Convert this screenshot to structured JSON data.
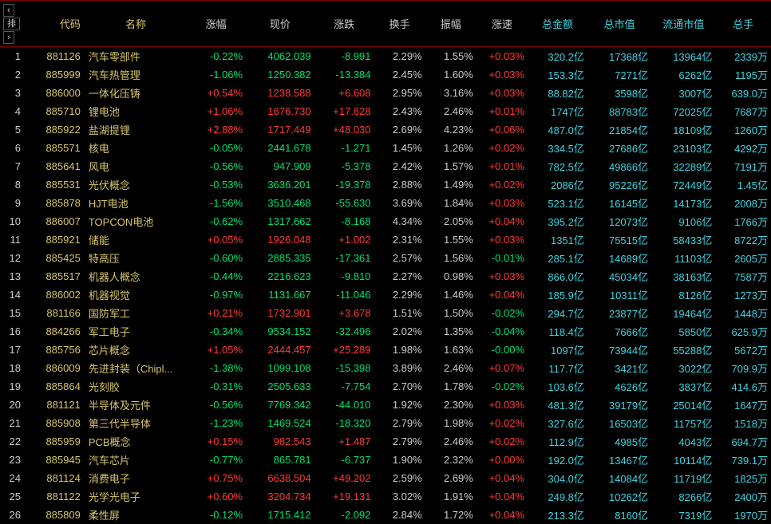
{
  "header_btn1": "‹",
  "header_btn2": "排",
  "header_btn3": "›",
  "cols": [
    "代码",
    "名称",
    "涨幅",
    "现价",
    "涨跌",
    "换手",
    "振幅",
    "涨速",
    "总金额",
    "总市值",
    "流通市值",
    "总手"
  ],
  "rows": [
    {
      "i": "1",
      "code": "881126",
      "name": "汽车零部件",
      "pct": "-0.22%",
      "price": "4062.039",
      "chg": "-8.991",
      "turn": "2.29%",
      "amp": "1.55%",
      "spd": "+0.03%",
      "amt": "320.2亿",
      "mcap": "17368亿",
      "fcap": "13964亿",
      "vol": "2339万"
    },
    {
      "i": "2",
      "code": "885999",
      "name": "汽车热管理",
      "pct": "-1.06%",
      "price": "1250.382",
      "chg": "-13.384",
      "turn": "2.45%",
      "amp": "1.60%",
      "spd": "+0.03%",
      "amt": "153.3亿",
      "mcap": "7271亿",
      "fcap": "6262亿",
      "vol": "1195万"
    },
    {
      "i": "3",
      "code": "886000",
      "name": "一体化压铸",
      "pct": "+0.54%",
      "price": "1238.588",
      "chg": "+6.608",
      "turn": "2.95%",
      "amp": "3.16%",
      "spd": "+0.03%",
      "amt": "88.82亿",
      "mcap": "3598亿",
      "fcap": "3007亿",
      "vol": "639.0万"
    },
    {
      "i": "4",
      "code": "885710",
      "name": "锂电池",
      "pct": "+1.06%",
      "price": "1676.730",
      "chg": "+17.628",
      "turn": "2.43%",
      "amp": "2.46%",
      "spd": "+0.01%",
      "amt": "1747亿",
      "mcap": "88783亿",
      "fcap": "72025亿",
      "vol": "7687万"
    },
    {
      "i": "5",
      "code": "885922",
      "name": "盐湖提锂",
      "pct": "+2.88%",
      "price": "1717.449",
      "chg": "+48.030",
      "turn": "2.69%",
      "amp": "4.23%",
      "spd": "+0.06%",
      "amt": "487.0亿",
      "mcap": "21854亿",
      "fcap": "18109亿",
      "vol": "1260万"
    },
    {
      "i": "6",
      "code": "885571",
      "name": "核电",
      "pct": "-0.05%",
      "price": "2441.678",
      "chg": "-1.271",
      "turn": "1.45%",
      "amp": "1.26%",
      "spd": "+0.02%",
      "amt": "334.5亿",
      "mcap": "27686亿",
      "fcap": "23103亿",
      "vol": "4292万"
    },
    {
      "i": "7",
      "code": "885641",
      "name": "风电",
      "pct": "-0.56%",
      "price": "947.909",
      "chg": "-5.378",
      "turn": "2.42%",
      "amp": "1.57%",
      "spd": "+0.01%",
      "amt": "782.5亿",
      "mcap": "49866亿",
      "fcap": "32289亿",
      "vol": "7191万"
    },
    {
      "i": "8",
      "code": "885531",
      "name": "光伏概念",
      "pct": "-0.53%",
      "price": "3636.201",
      "chg": "-19.378",
      "turn": "2.88%",
      "amp": "1.49%",
      "spd": "+0.02%",
      "amt": "2086亿",
      "mcap": "95226亿",
      "fcap": "72449亿",
      "vol": "1.45亿"
    },
    {
      "i": "9",
      "code": "885878",
      "name": "HJT电池",
      "pct": "-1.56%",
      "price": "3510.468",
      "chg": "-55.630",
      "turn": "3.69%",
      "amp": "1.84%",
      "spd": "+0.03%",
      "amt": "523.1亿",
      "mcap": "16145亿",
      "fcap": "14173亿",
      "vol": "2008万"
    },
    {
      "i": "10",
      "code": "886007",
      "name": "TOPCON电池",
      "pct": "-0.62%",
      "price": "1317.662",
      "chg": "-8.168",
      "turn": "4.34%",
      "amp": "2.05%",
      "spd": "+0.04%",
      "amt": "395.2亿",
      "mcap": "12073亿",
      "fcap": "9106亿",
      "vol": "1766万"
    },
    {
      "i": "11",
      "code": "885921",
      "name": "储能",
      "pct": "+0.05%",
      "price": "1926.048",
      "chg": "+1.002",
      "turn": "2.31%",
      "amp": "1.55%",
      "spd": "+0.03%",
      "amt": "1351亿",
      "mcap": "75515亿",
      "fcap": "58433亿",
      "vol": "8722万"
    },
    {
      "i": "12",
      "code": "885425",
      "name": "特高压",
      "pct": "-0.60%",
      "price": "2885.335",
      "chg": "-17.361",
      "turn": "2.57%",
      "amp": "1.56%",
      "spd": "-0.01%",
      "amt": "285.1亿",
      "mcap": "14689亿",
      "fcap": "11103亿",
      "vol": "2605万"
    },
    {
      "i": "13",
      "code": "885517",
      "name": "机器人概念",
      "pct": "-0.44%",
      "price": "2216.623",
      "chg": "-9.810",
      "turn": "2.27%",
      "amp": "0.98%",
      "spd": "+0.03%",
      "amt": "866.0亿",
      "mcap": "45034亿",
      "fcap": "38163亿",
      "vol": "7587万"
    },
    {
      "i": "14",
      "code": "886002",
      "name": "机器视觉",
      "pct": "-0.97%",
      "price": "1131.667",
      "chg": "-11.046",
      "turn": "2.29%",
      "amp": "1.46%",
      "spd": "+0.04%",
      "amt": "185.9亿",
      "mcap": "10311亿",
      "fcap": "8126亿",
      "vol": "1273万"
    },
    {
      "i": "15",
      "code": "881166",
      "name": "国防军工",
      "pct": "+0.21%",
      "price": "1732.901",
      "chg": "+3.678",
      "turn": "1.51%",
      "amp": "1.50%",
      "spd": "-0.02%",
      "amt": "294.7亿",
      "mcap": "23877亿",
      "fcap": "19464亿",
      "vol": "1448万"
    },
    {
      "i": "16",
      "code": "884266",
      "name": "军工电子",
      "pct": "-0.34%",
      "price": "9534.152",
      "chg": "-32.496",
      "turn": "2.02%",
      "amp": "1.35%",
      "spd": "-0.04%",
      "amt": "118.4亿",
      "mcap": "7666亿",
      "fcap": "5850亿",
      "vol": "625.9万"
    },
    {
      "i": "17",
      "code": "885756",
      "name": "芯片概念",
      "pct": "+1.05%",
      "price": "2444.457",
      "chg": "+25.289",
      "turn": "1.98%",
      "amp": "1.63%",
      "spd": "-0.00%",
      "amt": "1097亿",
      "mcap": "73944亿",
      "fcap": "55288亿",
      "vol": "5672万"
    },
    {
      "i": "18",
      "code": "886009",
      "name": "先进封装（Chipl...",
      "pct": "-1.38%",
      "price": "1099.108",
      "chg": "-15.398",
      "turn": "3.89%",
      "amp": "2.46%",
      "spd": "+0.07%",
      "amt": "117.7亿",
      "mcap": "3421亿",
      "fcap": "3022亿",
      "vol": "709.9万"
    },
    {
      "i": "19",
      "code": "885864",
      "name": "光刻胶",
      "pct": "-0.31%",
      "price": "2505.633",
      "chg": "-7.754",
      "turn": "2.70%",
      "amp": "1.78%",
      "spd": "-0.02%",
      "amt": "103.6亿",
      "mcap": "4626亿",
      "fcap": "3837亿",
      "vol": "414.6万"
    },
    {
      "i": "20",
      "code": "881121",
      "name": "半导体及元件",
      "pct": "-0.56%",
      "price": "7769.342",
      "chg": "-44.010",
      "turn": "1.92%",
      "amp": "2.30%",
      "spd": "+0.03%",
      "amt": "481.3亿",
      "mcap": "39179亿",
      "fcap": "25014亿",
      "vol": "1647万"
    },
    {
      "i": "21",
      "code": "885908",
      "name": "第三代半导体",
      "pct": "-1.23%",
      "price": "1469.524",
      "chg": "-18.320",
      "turn": "2.79%",
      "amp": "1.98%",
      "spd": "+0.02%",
      "amt": "327.6亿",
      "mcap": "16503亿",
      "fcap": "11757亿",
      "vol": "1518万"
    },
    {
      "i": "22",
      "code": "885959",
      "name": "PCB概念",
      "pct": "+0.15%",
      "price": "982.543",
      "chg": "+1.487",
      "turn": "2.79%",
      "amp": "2.46%",
      "spd": "+0.02%",
      "amt": "112.9亿",
      "mcap": "4985亿",
      "fcap": "4043亿",
      "vol": "694.7万"
    },
    {
      "i": "23",
      "code": "885945",
      "name": "汽车芯片",
      "pct": "-0.77%",
      "price": "865.781",
      "chg": "-6.737",
      "turn": "1.90%",
      "amp": "2.32%",
      "spd": "+0.00%",
      "amt": "192.0亿",
      "mcap": "13467亿",
      "fcap": "10114亿",
      "vol": "739.1万"
    },
    {
      "i": "24",
      "code": "881124",
      "name": "消费电子",
      "pct": "+0.75%",
      "price": "6638.504",
      "chg": "+49.202",
      "turn": "2.59%",
      "amp": "2.69%",
      "spd": "+0.04%",
      "amt": "304.0亿",
      "mcap": "14084亿",
      "fcap": "11719亿",
      "vol": "1825万"
    },
    {
      "i": "25",
      "code": "881122",
      "name": "光学光电子",
      "pct": "+0.60%",
      "price": "3204.734",
      "chg": "+19.131",
      "turn": "3.02%",
      "amp": "1.91%",
      "spd": "+0.04%",
      "amt": "249.8亿",
      "mcap": "10262亿",
      "fcap": "8266亿",
      "vol": "2400万"
    },
    {
      "i": "26",
      "code": "885809",
      "name": "柔性屏",
      "pct": "-0.12%",
      "price": "1715.412",
      "chg": "-2.092",
      "turn": "2.84%",
      "amp": "1.72%",
      "spd": "+0.04%",
      "amt": "213.3亿",
      "mcap": "8160亿",
      "fcap": "7319亿",
      "vol": "1970万"
    }
  ]
}
